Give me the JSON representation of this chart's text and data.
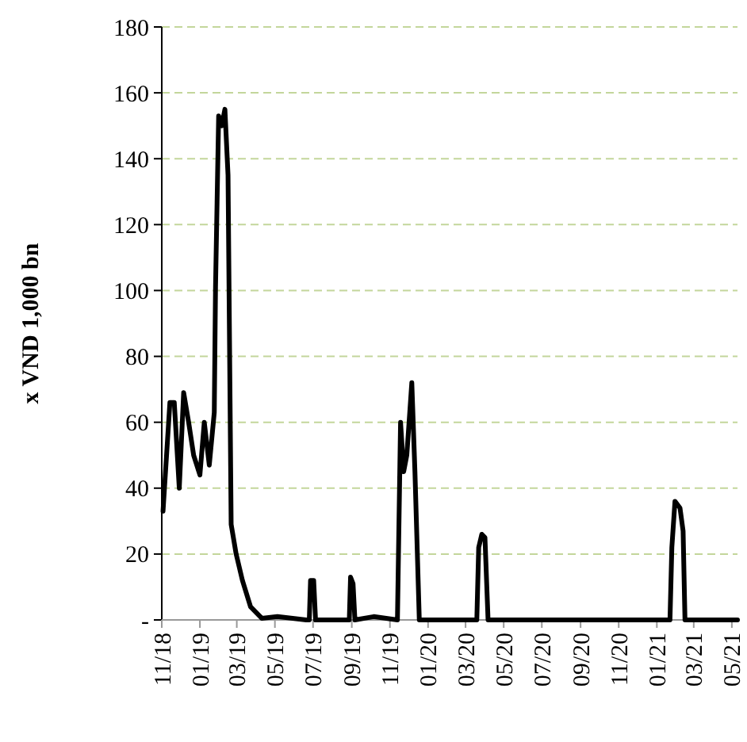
{
  "chart_data": {
    "type": "line",
    "ylabel": "x VND 1,000 bn",
    "x": [
      "2018-11-03",
      "2018-11-14",
      "2018-11-21",
      "2018-11-29",
      "2018-12-06",
      "2018-12-14",
      "2018-12-22",
      "2019-01-01",
      "2019-01-08",
      "2019-01-16",
      "2019-01-24",
      "2019-01-26",
      "2019-01-31",
      "2019-02-05",
      "2019-02-10",
      "2019-02-15",
      "2019-02-20",
      "2019-02-28",
      "2019-03-10",
      "2019-03-23",
      "2019-04-10",
      "2019-05-05",
      "2019-06-20",
      "2019-06-25",
      "2019-06-27",
      "2019-07-02",
      "2019-07-05",
      "2019-08-28",
      "2019-08-30",
      "2019-09-03",
      "2019-09-06",
      "2019-10-06",
      "2019-11-13",
      "2019-11-18",
      "2019-11-23",
      "2019-11-28",
      "2019-12-06",
      "2019-12-11",
      "2019-12-18",
      "2020-03-19",
      "2020-03-22",
      "2020-03-27",
      "2020-04-01",
      "2020-04-06",
      "2021-01-22",
      "2021-01-25",
      "2021-01-30",
      "2021-02-07",
      "2021-02-12",
      "2021-02-15",
      "2021-05-10"
    ],
    "series": [
      {
        "color": "#000000",
        "values": [
          33,
          66,
          66,
          40,
          69,
          60,
          50,
          44,
          60,
          47,
          63,
          101,
          153,
          150,
          155,
          135,
          29,
          20,
          12,
          4,
          0.5,
          1,
          0,
          0,
          12,
          12,
          0,
          0,
          13,
          11,
          0,
          1,
          0,
          60,
          45,
          50,
          72,
          45,
          0,
          0,
          22,
          26,
          25,
          0,
          0,
          22,
          36,
          34,
          27,
          0,
          0
        ]
      }
    ],
    "xlim": [
      "2018-11-01",
      "2021-05-10"
    ],
    "xticks": [
      {
        "value": "2018-11",
        "label": "11/18"
      },
      {
        "value": "2019-01",
        "label": "01/19"
      },
      {
        "value": "2019-03",
        "label": "03/19"
      },
      {
        "value": "2019-05",
        "label": "05/19"
      },
      {
        "value": "2019-07",
        "label": "07/19"
      },
      {
        "value": "2019-09",
        "label": "09/19"
      },
      {
        "value": "2019-11",
        "label": "11/19"
      },
      {
        "value": "2020-01",
        "label": "01/20"
      },
      {
        "value": "2020-03",
        "label": "03/20"
      },
      {
        "value": "2020-05",
        "label": "05/20"
      },
      {
        "value": "2020-07",
        "label": "07/20"
      },
      {
        "value": "2020-09",
        "label": "09/20"
      },
      {
        "value": "2020-11",
        "label": "11/20"
      },
      {
        "value": "2021-01",
        "label": "01/21"
      },
      {
        "value": "2021-03",
        "label": "03/21"
      },
      {
        "value": "2021-05",
        "label": "05/21"
      }
    ],
    "ylim": [
      0,
      180
    ],
    "yticks": [
      {
        "value": 0,
        "label": "-"
      },
      20,
      40,
      60,
      80,
      100,
      120,
      140,
      160,
      180
    ],
    "grid": "y",
    "line_style": "solid"
  }
}
